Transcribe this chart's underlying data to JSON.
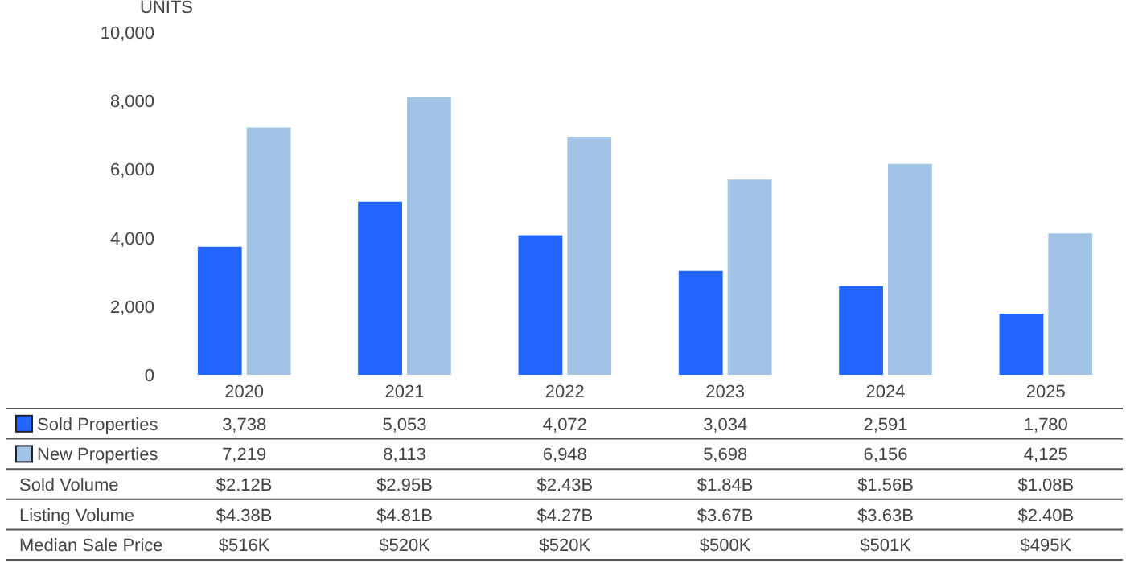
{
  "chart_data": {
    "type": "bar",
    "ylabel": "UNITS",
    "categories": [
      "2020",
      "2021",
      "2022",
      "2023",
      "2024",
      "2025"
    ],
    "series": [
      {
        "name": "Sold Properties",
        "color": "#2266ff",
        "values": [
          3738,
          5053,
          4072,
          3034,
          2591,
          1780
        ],
        "value_labels": [
          "3,738",
          "5,053",
          "4,072",
          "3,034",
          "2,591",
          "1,780"
        ]
      },
      {
        "name": "New Properties",
        "color": "#a0c3e6",
        "values": [
          7219,
          8113,
          6948,
          5698,
          6156,
          4125
        ],
        "value_labels": [
          "7,219",
          "8,113",
          "6,948",
          "5,698",
          "6,156",
          "4,125"
        ]
      }
    ],
    "ylim": [
      0,
      10000
    ],
    "yticks": [
      {
        "value": 0,
        "label": "0"
      },
      {
        "value": 2000,
        "label": "2,000"
      },
      {
        "value": 4000,
        "label": "4,000"
      },
      {
        "value": 6000,
        "label": "6,000"
      },
      {
        "value": 8000,
        "label": "8,000"
      },
      {
        "value": 10000,
        "label": "10,000"
      }
    ],
    "grid": false,
    "legend": "bottom",
    "annotations": [
      "Sold Volume",
      "$2.12B",
      "$2.95B",
      "$2.43B",
      "$1.84B",
      "$1.56B",
      "$1.08B",
      "Listing Volume",
      "$4.38B",
      "$4.81B",
      "$4.27B",
      "$3.67B",
      "$3.63B",
      "$2.40B",
      "Median Sale Price",
      "$516K",
      "$520K",
      "$520K",
      "$500K",
      "$501K",
      "$495K"
    ]
  }
}
